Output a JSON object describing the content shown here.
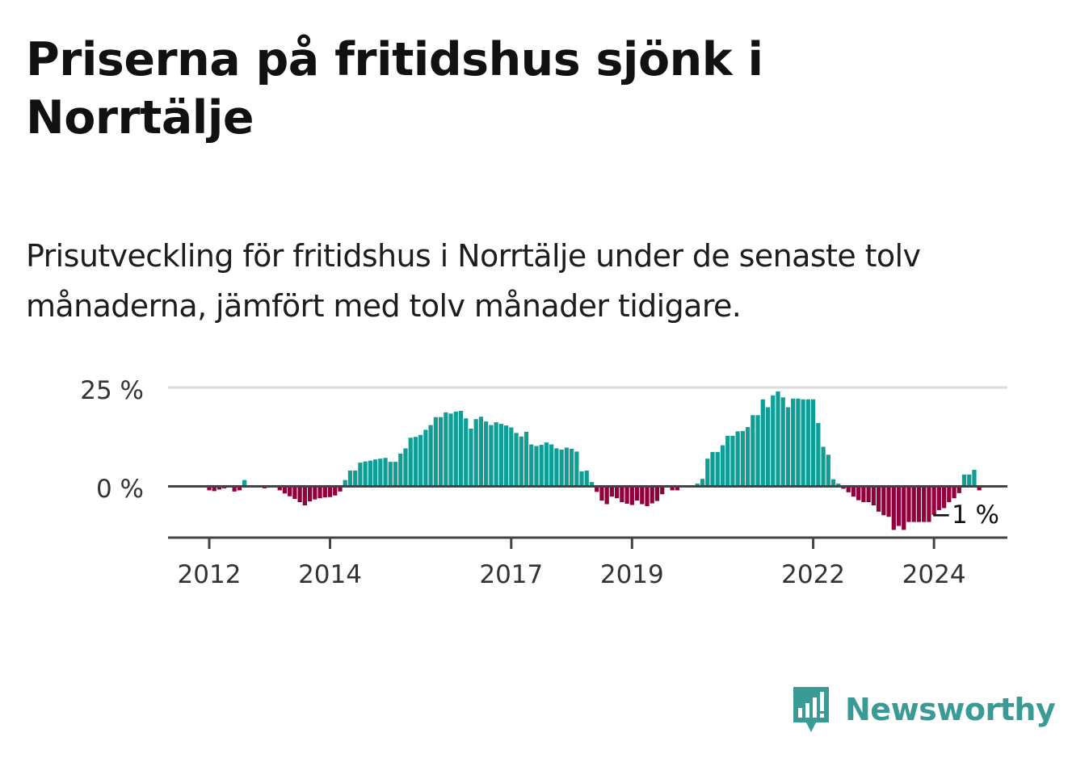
{
  "title": "Priserna på fritidshus sjönk i Norrtälje",
  "subtitle": "Prisutveckling för fritidshus i Norrtälje under de senaste tolv månaderna, jämfört med tolv månader tidigare.",
  "colors": {
    "positive": "#0f9e96",
    "negative": "#91003c",
    "axis": "#444444",
    "grid": "#dddddd",
    "text": "#111111",
    "brand": "#3a9b96"
  },
  "logo": {
    "text": "Newsworthy",
    "icon": "newsworthy-logo-icon"
  },
  "chart_data": {
    "type": "bar",
    "title": "Priserna på fritidshus sjönk i Norrtälje",
    "unit": "%",
    "y_ticks": [
      {
        "value": 0,
        "label": "0 %"
      },
      {
        "value": 25,
        "label": "25 %"
      }
    ],
    "ylim": [
      -13,
      25
    ],
    "x_ticks": [
      {
        "label": "2012",
        "index": 2
      },
      {
        "label": "2014",
        "index": 26
      },
      {
        "label": "2017",
        "index": 62
      },
      {
        "label": "2019",
        "index": 86
      },
      {
        "label": "2022",
        "index": 122
      },
      {
        "label": "2024",
        "index": 146
      }
    ],
    "start": "2011-11",
    "frequency": "monthly",
    "last_label": "−1 %",
    "values": [
      0,
      0,
      -1,
      -1.2,
      -0.8,
      -0.5,
      0,
      -1.3,
      -1,
      1.6,
      0,
      0,
      0,
      -0.5,
      0,
      0,
      -1,
      -1.8,
      -2.5,
      -3.2,
      -4,
      -4.8,
      -3.8,
      -3.3,
      -3,
      -2.8,
      -2.7,
      -2.3,
      -1.3,
      1.6,
      4,
      4,
      6,
      6.3,
      6.5,
      6.8,
      7,
      7.2,
      6.2,
      6.2,
      8.3,
      9.6,
      12.3,
      12.5,
      13,
      14.3,
      15.5,
      17.5,
      17.5,
      18.7,
      18.4,
      18.9,
      19.1,
      17.2,
      14.6,
      17,
      17.6,
      16.4,
      15.5,
      16.2,
      15.8,
      15.4,
      14.9,
      13.5,
      12.6,
      13.8,
      10.6,
      10.2,
      10.5,
      11.1,
      10.6,
      9.6,
      9.3,
      9.8,
      9.5,
      8.8,
      3.8,
      4,
      1.1,
      -1.4,
      -3.6,
      -4.5,
      -2.6,
      -3,
      -4,
      -4.4,
      -4.7,
      -3.6,
      -4.5,
      -5,
      -4.3,
      -3.7,
      -2,
      0,
      -1,
      -1,
      0,
      0,
      0,
      0.7,
      1.9,
      7,
      8.7,
      8.7,
      10.4,
      12.8,
      12.8,
      13.9,
      14,
      15,
      18,
      18,
      22,
      20,
      23,
      24,
      22.5,
      20,
      22.2,
      22.2,
      22,
      22,
      22,
      16,
      10,
      8,
      1.8,
      0.7,
      -0.6,
      -1.5,
      -2.6,
      -3.5,
      -4,
      -4,
      -4.8,
      -6.4,
      -7.3,
      -7.7,
      -11,
      -10,
      -11,
      -9,
      -9,
      -9,
      -9,
      -9,
      -7.2,
      -6,
      -5.5,
      -4,
      -3,
      -1.7,
      3,
      3,
      4.2,
      -1
    ]
  }
}
